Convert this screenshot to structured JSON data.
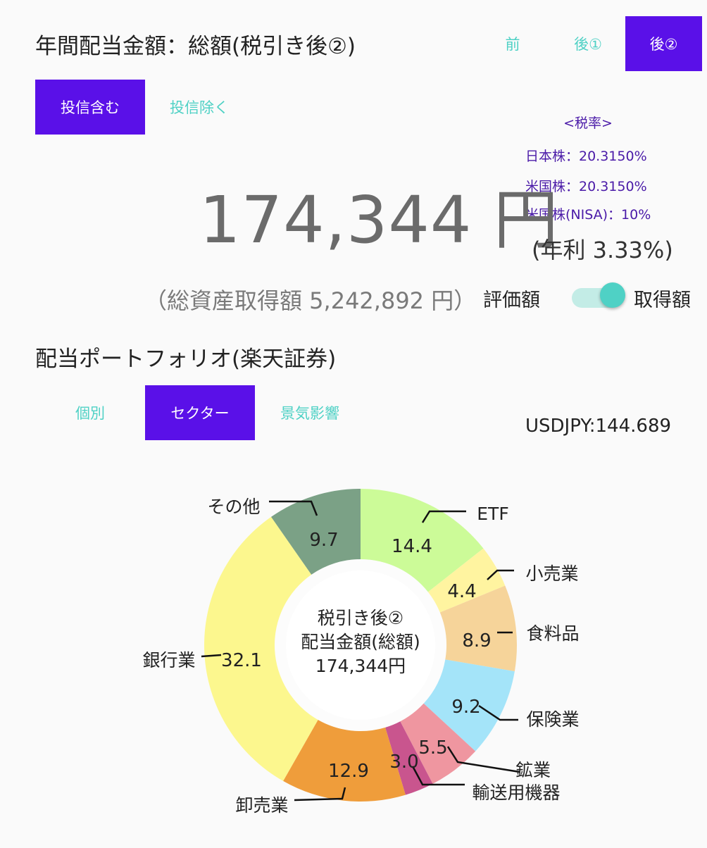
{
  "header": {
    "title": "年間配当金額：総額(税引き後②)",
    "tax_modes": [
      {
        "label": "前",
        "active": false
      },
      {
        "label": "後①",
        "active": false
      },
      {
        "label": "後②",
        "active": true
      }
    ]
  },
  "fund_filter": [
    {
      "label": "投信含む",
      "active": true
    },
    {
      "label": "投信除く",
      "active": false
    }
  ],
  "tax_rates": {
    "heading": "<税率>",
    "items": [
      "日本株：20.3150%",
      "米国株：20.3150%",
      "米国株(NISA)：10%"
    ]
  },
  "summary": {
    "amount": "174,344 円",
    "yield": "(年利 3.33%)",
    "total_assets": "（総資産取得額 5,242,892 円）"
  },
  "basis_toggle": {
    "left_label": "評価額",
    "right_label": "取得額",
    "selected": "取得額"
  },
  "portfolio": {
    "title": "配当ポートフォリオ(楽天証券)",
    "tabs": [
      {
        "label": "個別",
        "active": false
      },
      {
        "label": "セクター",
        "active": true
      },
      {
        "label": "景気影響",
        "active": false
      }
    ],
    "fx_rate": "USDJPY:144.689"
  },
  "chart_data": {
    "type": "pie",
    "donut": true,
    "center_text": [
      "税引き後②",
      "配当金額(総額)",
      "174,344円"
    ],
    "slices": [
      {
        "label": "ETF",
        "value": 14.4,
        "display": "14.4",
        "color": "#ccfb98"
      },
      {
        "label": "小売業",
        "value": 4.4,
        "display": "4.4",
        "color": "#fff4a0"
      },
      {
        "label": "食料品",
        "value": 8.9,
        "display": "8.9",
        "color": "#f6d49a"
      },
      {
        "label": "保険業",
        "value": 9.2,
        "display": "9.2",
        "color": "#a4e4f9"
      },
      {
        "label": "鉱業",
        "value": 5.5,
        "display": "5.5",
        "color": "#ef96a0"
      },
      {
        "label": "輸送用機器",
        "value": 3.0,
        "display": "3.0",
        "color": "#c9558e"
      },
      {
        "label": "卸売業",
        "value": 12.9,
        "display": "12.9",
        "color": "#ef9d3b"
      },
      {
        "label": "銀行業",
        "value": 32.1,
        "display": "32.1",
        "color": "#fcf78e"
      },
      {
        "label": "その他",
        "value": 9.7,
        "display": "9.7",
        "color": "#7ba186"
      }
    ]
  }
}
